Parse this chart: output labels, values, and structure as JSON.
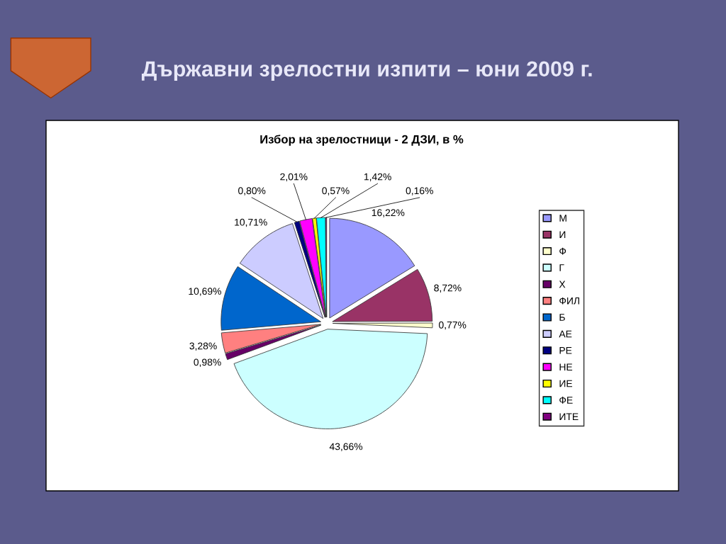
{
  "chart_data": {
    "type": "pie",
    "title": "Държавни зрелостни изпити – юни 2009 г.",
    "subtitle": "Избор на зрелостници - 2 ДЗИ, в %",
    "categories": [
      "М",
      "И",
      "Ф",
      "Г",
      "Х",
      "ФИЛ",
      "Б",
      "АЕ",
      "РЕ",
      "НЕ",
      "ИЕ",
      "ФЕ",
      "ИТЕ"
    ],
    "values": [
      16.22,
      8.72,
      0.77,
      43.66,
      0.98,
      3.28,
      10.69,
      10.71,
      0.8,
      2.01,
      0.57,
      1.42,
      0.16
    ],
    "value_labels": [
      "16,22%",
      "8,72%",
      "0,77%",
      "43,66%",
      "0,98%",
      "3,28%",
      "10,69%",
      "10,71%",
      "0,80%",
      "2,01%",
      "0,57%",
      "1,42%",
      "0,16%"
    ],
    "colors": [
      "#9999ff",
      "#993366",
      "#ffffcc",
      "#ccffff",
      "#660066",
      "#ff8080",
      "#0066cc",
      "#ccccff",
      "#000080",
      "#ff00ff",
      "#ffff00",
      "#00ffff",
      "#800080"
    ],
    "legend": "right"
  }
}
